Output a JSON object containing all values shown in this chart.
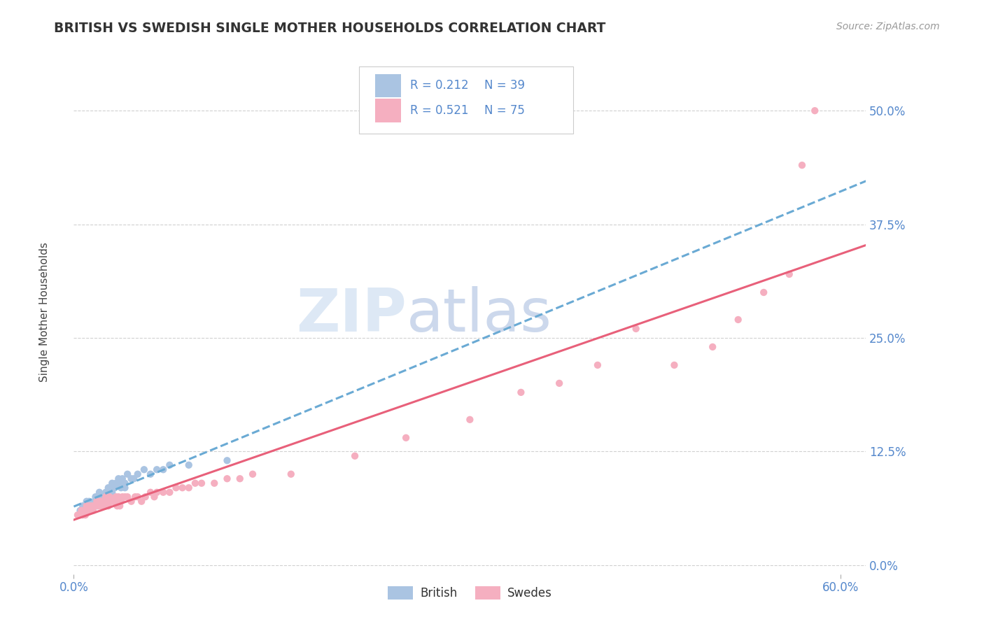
{
  "title": "BRITISH VS SWEDISH SINGLE MOTHER HOUSEHOLDS CORRELATION CHART",
  "source": "Source: ZipAtlas.com",
  "ylabel": "Single Mother Households",
  "xlim": [
    0.0,
    0.62
  ],
  "ylim": [
    -0.01,
    0.56
  ],
  "xticks": [
    0.0,
    0.6
  ],
  "xticklabels": [
    "0.0%",
    "60.0%"
  ],
  "yticks": [
    0.0,
    0.125,
    0.25,
    0.375,
    0.5
  ],
  "yticklabels": [
    "0.0%",
    "12.5%",
    "25.0%",
    "37.5%",
    "50.0%"
  ],
  "british_R": "0.212",
  "british_N": "39",
  "swedes_R": "0.521",
  "swedes_N": "75",
  "british_color": "#aac4e2",
  "swedes_color": "#f5afc0",
  "british_line_color": "#6aaad4",
  "swedes_line_color": "#e8607a",
  "tick_color": "#5588cc",
  "watermark_color": "#dde8f5",
  "british_x": [
    0.005,
    0.007,
    0.008,
    0.01,
    0.01,
    0.012,
    0.013,
    0.015,
    0.016,
    0.017,
    0.018,
    0.02,
    0.02,
    0.022,
    0.022,
    0.025,
    0.025,
    0.027,
    0.03,
    0.03,
    0.032,
    0.033,
    0.035,
    0.035,
    0.037,
    0.038,
    0.04,
    0.04,
    0.042,
    0.045,
    0.047,
    0.05,
    0.055,
    0.06,
    0.065,
    0.07,
    0.075,
    0.09,
    0.12
  ],
  "british_y": [
    0.06,
    0.065,
    0.06,
    0.065,
    0.07,
    0.07,
    0.065,
    0.065,
    0.07,
    0.075,
    0.065,
    0.075,
    0.08,
    0.07,
    0.075,
    0.075,
    0.08,
    0.085,
    0.08,
    0.09,
    0.085,
    0.09,
    0.09,
    0.095,
    0.085,
    0.095,
    0.085,
    0.09,
    0.1,
    0.095,
    0.095,
    0.1,
    0.105,
    0.1,
    0.105,
    0.105,
    0.11,
    0.11,
    0.115
  ],
  "swedes_x": [
    0.003,
    0.005,
    0.006,
    0.007,
    0.008,
    0.009,
    0.01,
    0.011,
    0.012,
    0.013,
    0.014,
    0.015,
    0.015,
    0.016,
    0.017,
    0.018,
    0.019,
    0.02,
    0.02,
    0.021,
    0.022,
    0.022,
    0.023,
    0.024,
    0.025,
    0.025,
    0.026,
    0.027,
    0.028,
    0.03,
    0.031,
    0.032,
    0.033,
    0.034,
    0.035,
    0.035,
    0.036,
    0.037,
    0.038,
    0.04,
    0.042,
    0.045,
    0.048,
    0.05,
    0.053,
    0.056,
    0.06,
    0.063,
    0.065,
    0.07,
    0.075,
    0.08,
    0.085,
    0.09,
    0.095,
    0.1,
    0.11,
    0.12,
    0.13,
    0.14,
    0.17,
    0.22,
    0.26,
    0.31,
    0.35,
    0.38,
    0.41,
    0.44,
    0.47,
    0.5,
    0.52,
    0.54,
    0.56,
    0.57,
    0.58
  ],
  "swedes_y": [
    0.055,
    0.055,
    0.06,
    0.055,
    0.06,
    0.055,
    0.065,
    0.06,
    0.065,
    0.06,
    0.065,
    0.065,
    0.06,
    0.065,
    0.065,
    0.07,
    0.065,
    0.065,
    0.07,
    0.07,
    0.065,
    0.07,
    0.065,
    0.07,
    0.065,
    0.075,
    0.07,
    0.065,
    0.075,
    0.07,
    0.07,
    0.07,
    0.075,
    0.065,
    0.075,
    0.07,
    0.065,
    0.07,
    0.075,
    0.075,
    0.075,
    0.07,
    0.075,
    0.075,
    0.07,
    0.075,
    0.08,
    0.075,
    0.08,
    0.08,
    0.08,
    0.085,
    0.085,
    0.085,
    0.09,
    0.09,
    0.09,
    0.095,
    0.095,
    0.1,
    0.1,
    0.12,
    0.14,
    0.16,
    0.19,
    0.2,
    0.22,
    0.26,
    0.22,
    0.24,
    0.27,
    0.3,
    0.32,
    0.44,
    0.5
  ]
}
